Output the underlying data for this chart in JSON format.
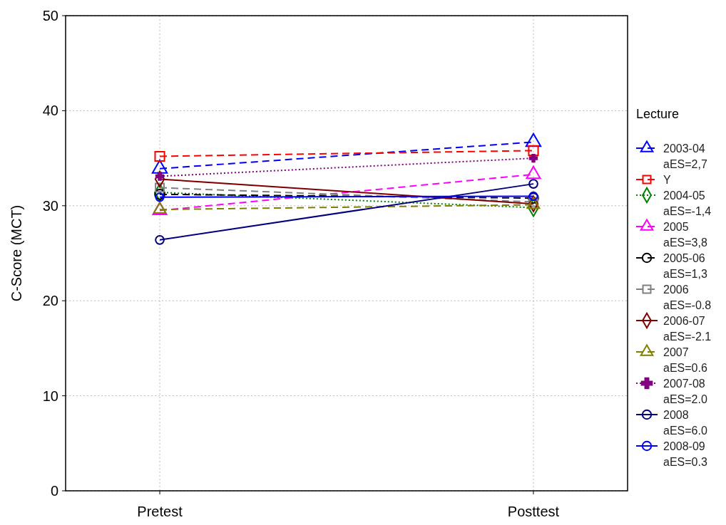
{
  "chart_data": {
    "type": "line",
    "ylabel": "C-Score (MCT)",
    "legend_title": "Lecture",
    "categories": [
      "Pretest",
      "Posttest"
    ],
    "ylim": [
      0,
      50
    ],
    "yticks": [
      0,
      10,
      20,
      30,
      40,
      50
    ],
    "grid": true,
    "legend": "right",
    "series": [
      {
        "name": "2003-04\naES=2,7",
        "color": "#0000ff",
        "marker": "triangle",
        "line_style": "dashed",
        "values": [
          33.9,
          36.7
        ]
      },
      {
        "name": "Y",
        "color": "#ff0000",
        "marker": "square",
        "line_style": "dashed",
        "values": [
          35.2,
          35.8
        ]
      },
      {
        "name": "2004-05\naES=-1,4",
        "color": "#008000",
        "marker": "diamond",
        "line_style": "dotted",
        "values": [
          31.4,
          29.8
        ]
      },
      {
        "name": "2005\naES=3,8",
        "color": "#ff00ff",
        "marker": "triangle",
        "line_style": "dashed",
        "values": [
          29.5,
          33.3
        ]
      },
      {
        "name": "2005-06\naES=1,3",
        "color": "#000000",
        "marker": "circle",
        "line_style": "dashed",
        "values": [
          31.2,
          30.8
        ]
      },
      {
        "name": "2006\naES=-0.8",
        "color": "#808080",
        "marker": "square",
        "line_style": "dashed",
        "values": [
          31.9,
          30.4
        ]
      },
      {
        "name": "2006-07\naES=-2.1",
        "color": "#800000",
        "marker": "diamond",
        "line_style": "solid",
        "values": [
          32.8,
          30.2
        ]
      },
      {
        "name": "2007\naES=0.6",
        "color": "#808000",
        "marker": "triangle",
        "line_style": "dashed",
        "values": [
          29.6,
          30.1
        ]
      },
      {
        "name": "2007-08\naES=2.0",
        "color": "#800080",
        "marker": "cross",
        "line_style": "dotted",
        "values": [
          33.1,
          35.0
        ]
      },
      {
        "name": "2008\naES=6.0",
        "color": "#000080",
        "marker": "circle",
        "line_style": "solid",
        "values": [
          26.4,
          32.3
        ]
      },
      {
        "name": "2008-09\naES=0.3",
        "color": "#0000ff",
        "marker": "circle",
        "line_style": "solid",
        "values": [
          30.9,
          31.0
        ]
      }
    ]
  }
}
